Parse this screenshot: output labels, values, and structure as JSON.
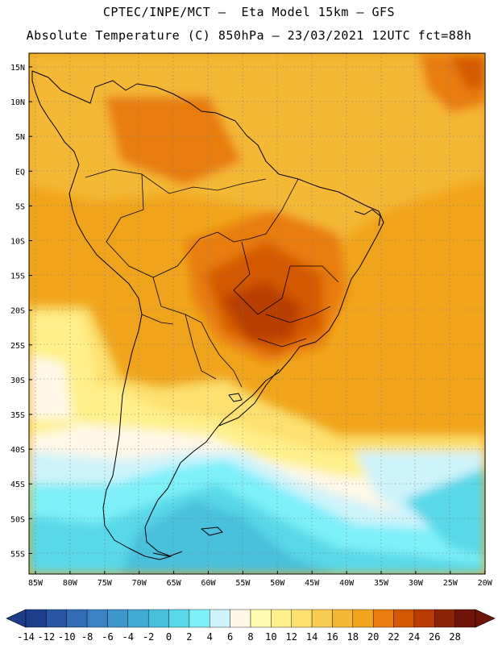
{
  "header": {
    "line1": "CPTEC/INPE/MCT –  Eta Model 15km – GFS",
    "line2": "Absolute Temperature (C) 850hPa – 23/03/2021 12UTC fct=88h"
  },
  "map": {
    "lat_labels": [
      "15N",
      "10N",
      "5N",
      "EQ",
      "5S",
      "10S",
      "15S",
      "20S",
      "25S",
      "30S",
      "35S",
      "40S",
      "45S",
      "50S",
      "55S"
    ],
    "lon_labels": [
      "85W",
      "80W",
      "75W",
      "70W",
      "65W",
      "60W",
      "55W",
      "50W",
      "45W",
      "40W",
      "35W",
      "30W",
      "25W",
      "20W"
    ],
    "lat_range": [
      -58,
      16
    ],
    "lon_range": [
      -86,
      -20
    ],
    "grid": true
  },
  "colorbar": {
    "labels": [
      "-14",
      "-12",
      "-10",
      "-8",
      "-6",
      "-4",
      "-2",
      "0",
      "2",
      "4",
      "6",
      "8",
      "10",
      "12",
      "14",
      "16",
      "18",
      "20",
      "22",
      "24",
      "26",
      "28"
    ],
    "colors": [
      "#1e3c8c",
      "#2a55a0",
      "#326cb4",
      "#3a82c4",
      "#3e96cc",
      "#40aad4",
      "#48c0dc",
      "#58d8e8",
      "#7ef0f8",
      "#cff3fb",
      "#fff8e6",
      "#fffbb0",
      "#fff08c",
      "#fce070",
      "#f8cc50",
      "#f4b834",
      "#f0a41c",
      "#e87c0c",
      "#d45804",
      "#b83c04",
      "#8c2408",
      "#6e1408"
    ],
    "under_color": "#1e3c8c",
    "over_color": "#6e1408"
  }
}
